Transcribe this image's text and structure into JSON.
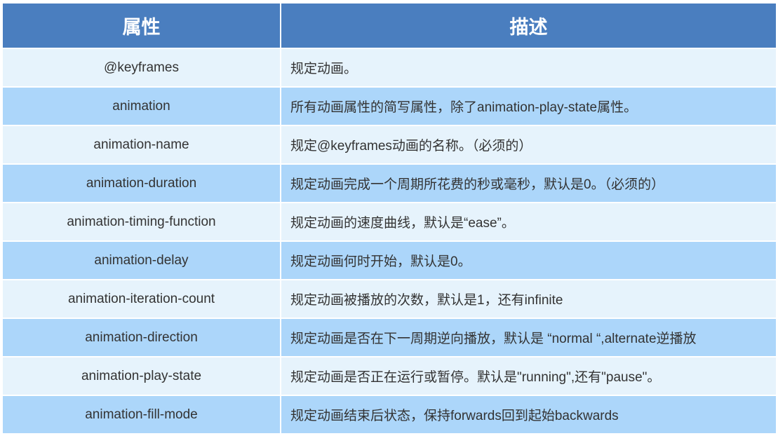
{
  "table": {
    "headers": [
      "属性",
      "描述"
    ],
    "rows": [
      {
        "property": "@keyframes",
        "description": "规定动画。"
      },
      {
        "property": "animation",
        "description": "所有动画属性的简写属性，除了animation-play-state属性。"
      },
      {
        "property": "animation-name",
        "description": "规定@keyframes动画的名称。（必须的）"
      },
      {
        "property": "animation-duration",
        "description": "规定动画完成一个周期所花费的秒或毫秒，默认是0。（必须的）"
      },
      {
        "property": "animation-timing-function",
        "description": "规定动画的速度曲线，默认是“ease”。"
      },
      {
        "property": "animation-delay",
        "description": "规定动画何时开始，默认是0。"
      },
      {
        "property": "animation-iteration-count",
        "description": "规定动画被播放的次数，默认是1，还有infinite"
      },
      {
        "property": "animation-direction",
        "description": "规定动画是否在下一周期逆向播放，默认是 “normal “,alternate逆播放"
      },
      {
        "property": "animation-play-state",
        "description": "规定动画是否正在运行或暂停。默认是\"running\",还有\"pause\"。"
      },
      {
        "property": "animation-fill-mode",
        "description": "规定动画结束后状态，保持forwards回到起始backwards"
      }
    ]
  },
  "colors": {
    "header": "#4a7ebf",
    "row_light": "#e6f3fc",
    "row_dark": "#acd6fa"
  }
}
